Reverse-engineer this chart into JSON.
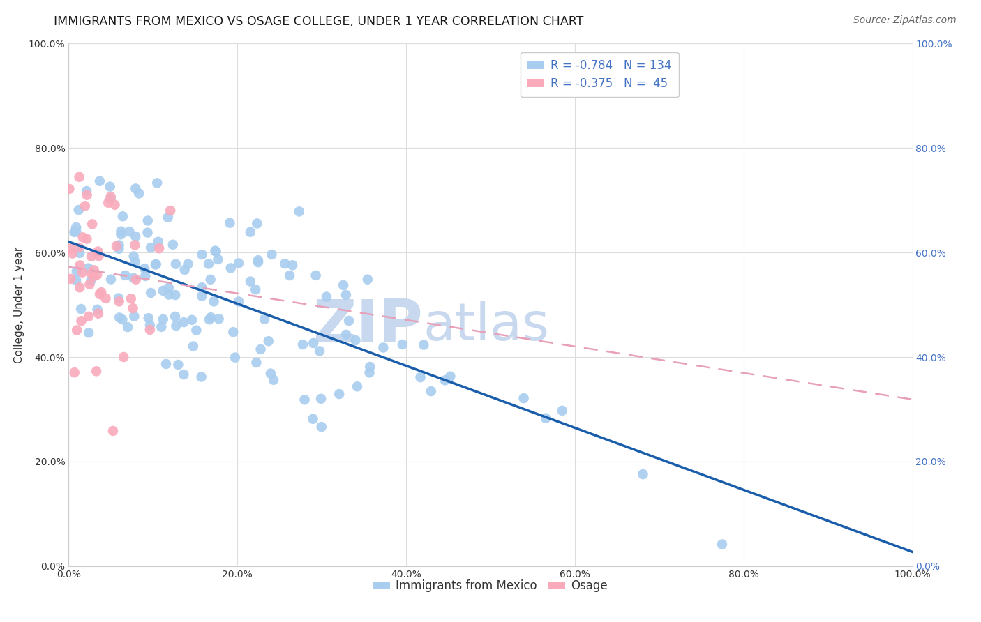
{
  "title": "IMMIGRANTS FROM MEXICO VS OSAGE COLLEGE, UNDER 1 YEAR CORRELATION CHART",
  "source": "Source: ZipAtlas.com",
  "ylabel": "College, Under 1 year",
  "legend_labels": [
    "Immigrants from Mexico",
    "Osage"
  ],
  "blue_R": -0.784,
  "blue_N": 134,
  "pink_R": -0.375,
  "pink_N": 45,
  "blue_color": "#A8CDEF",
  "pink_color": "#F9AABB",
  "blue_line_color": "#1A5EAB",
  "pink_line_color": "#E8689A",
  "pink_line_color_dash": "#E8A0B8",
  "grid_color": "#DDDDDD",
  "watermark_color": "#C8D8EE",
  "background_color": "#FFFFFF",
  "title_fontsize": 12.5,
  "axis_label_fontsize": 11,
  "tick_fontsize": 10,
  "legend_fontsize": 12,
  "source_fontsize": 10,
  "right_tick_color": "#4472C4"
}
